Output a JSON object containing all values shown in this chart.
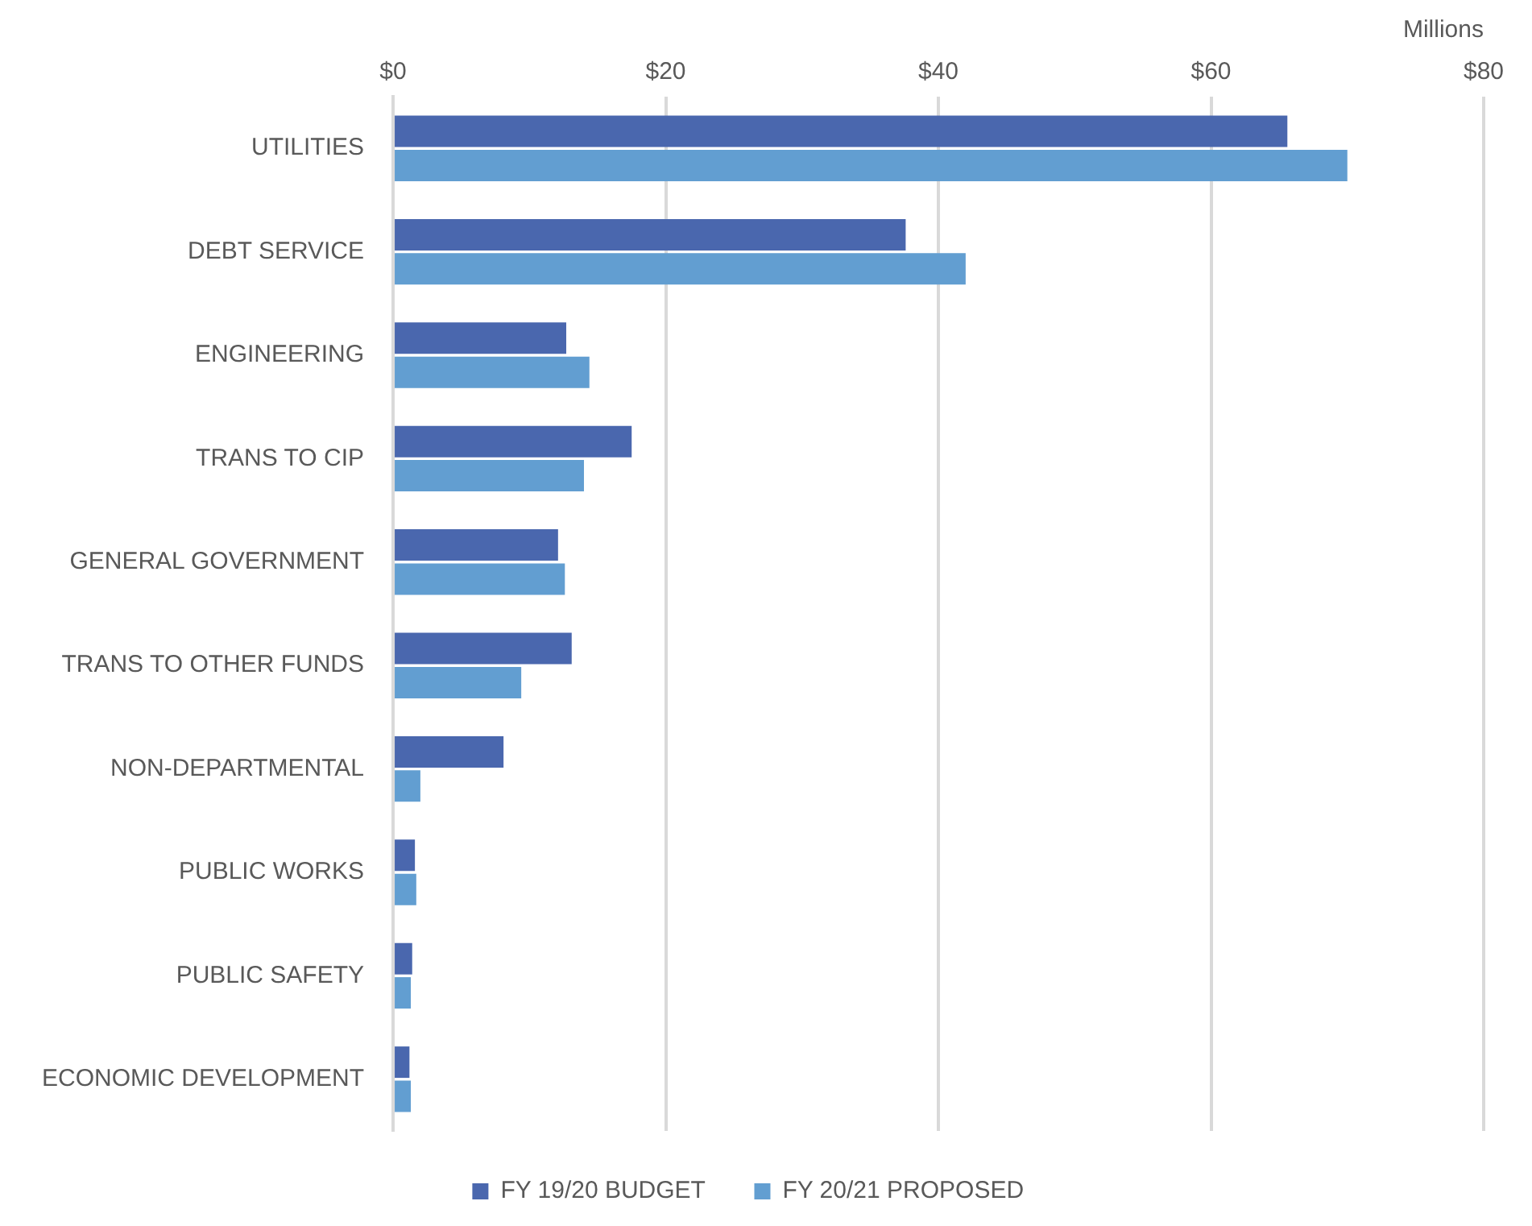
{
  "chart_data": {
    "type": "bar",
    "orientation": "horizontal",
    "xlabel": "Millions",
    "categories": [
      "UTILITIES",
      "DEBT SERVICE",
      "ENGINEERING",
      "TRANS TO CIP",
      "GENERAL GOVERNMENT",
      "TRANS TO OTHER FUNDS",
      "NON-DEPARTMENTAL",
      "PUBLIC WORKS",
      "PUBLIC SAFETY",
      "ECONOMIC DEVELOPMENT"
    ],
    "series": [
      {
        "name": "FY 19/20 BUDGET",
        "color": "#4a67ae",
        "values": [
          65.6,
          37.6,
          12.7,
          17.5,
          12.1,
          13.1,
          8.1,
          1.6,
          1.4,
          1.2
        ]
      },
      {
        "name": "FY 20/21 PROPOSED",
        "color": "#629ed1",
        "values": [
          70.0,
          42.0,
          14.4,
          14.0,
          12.6,
          9.4,
          2.0,
          1.7,
          1.3,
          1.3
        ]
      }
    ],
    "xlim": [
      0,
      80
    ],
    "xticks": [
      {
        "value": 0,
        "label": "$0"
      },
      {
        "value": 20,
        "label": "$20"
      },
      {
        "value": 40,
        "label": "$40"
      },
      {
        "value": 60,
        "label": "$60"
      },
      {
        "value": 80,
        "label": "$80"
      }
    ],
    "grid": "x",
    "legend": "bottom"
  }
}
